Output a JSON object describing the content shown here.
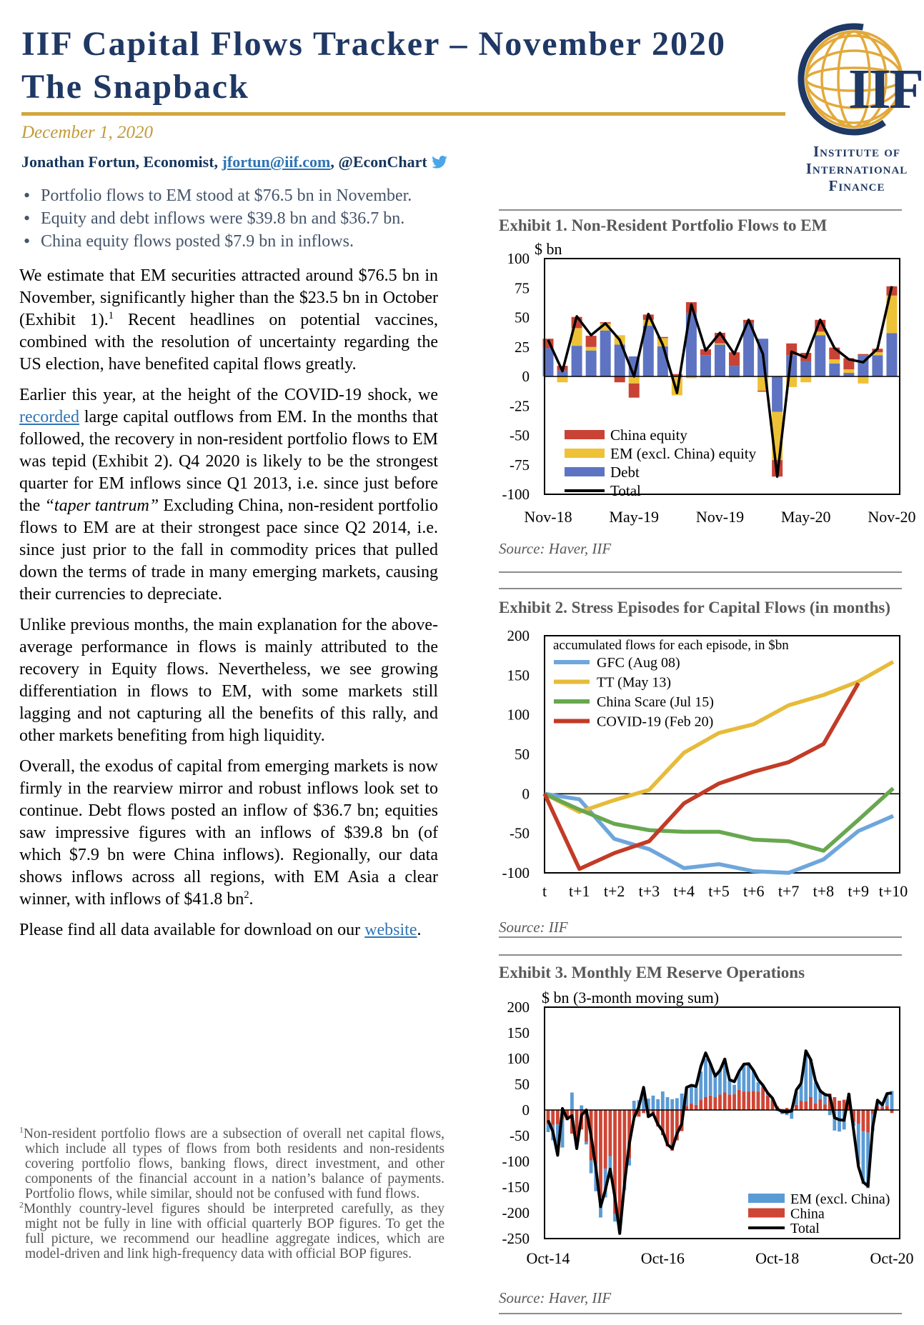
{
  "header": {
    "title_line1": "IIF Capital Flows Tracker – November 2020",
    "title_line2": "The Snapback",
    "date": "December 1, 2020",
    "author_name": "Jonathan Fortun, Economist, ",
    "author_email": "jfortun@iif.com",
    "author_handle": ", @EconChart",
    "accent_gold": "#D2A63E",
    "navy": "#1F3864"
  },
  "logo": {
    "acronym": "IIF",
    "org_lines": [
      "Institute of",
      "International",
      "Finance"
    ]
  },
  "bullets": [
    "Portfolio flows to EM stood at $76.5 bn in November.",
    "Equity and debt inflows were $39.8 bn and $36.7 bn.",
    "China equity flows posted $7.9 bn in inflows."
  ],
  "paragraphs": [
    [
      {
        "t": "We estimate that EM securities attracted around $76.5 bn in November, significantly higher than the $23.5 bn in October (Exhibit 1)."
      },
      {
        "t": "1",
        "s": "sup"
      },
      {
        "t": " Recent headlines on potential vaccines, combined with the resolution of uncertainty regarding the US election, have benefited capital flows greatly."
      }
    ],
    [
      {
        "t": "Earlier this year, at the height of the COVID-19 shock, we "
      },
      {
        "t": "recorded",
        "s": "link"
      },
      {
        "t": " large capital outflows from EM. In the months that followed, the recovery in non-resident portfolio flows to EM was tepid (Exhibit 2). Q4 2020 is likely to be the strongest quarter for EM inflows since Q1 2013, i.e. since just before the "
      },
      {
        "t": "“taper tantrum”",
        "s": "italic"
      },
      {
        "t": " Excluding China, non-resident portfolio flows to EM are at their strongest pace since Q2 2014, i.e. since just prior to the fall in commodity prices that pulled down the terms of trade in many emerging markets, causing their currencies to depreciate."
      }
    ],
    [
      {
        "t": "Unlike previous months, the main explanation for the above-average performance in flows is mainly attributed to the recovery in Equity flows. Nevertheless, we see growing differentiation in flows to EM, with some markets still lagging and not capturing all the benefits of this rally, and other markets benefiting from high liquidity."
      }
    ],
    [
      {
        "t": "Overall, the exodus of capital from emerging markets is now firmly in the rearview mirror and robust inflows look set to continue. Debt flows posted an inflow of $36.7 bn; equities saw impressive figures with an inflows of $39.8 bn (of which $7.9 bn were China inflows). Regionally, our data shows inflows across all regions, with EM Asia a clear winner, with inflows of $41.8 bn"
      },
      {
        "t": "2",
        "s": "sup"
      },
      {
        "t": "."
      }
    ],
    [
      {
        "t": "Please find all data available for download on our "
      },
      {
        "t": "website",
        "s": "link"
      },
      {
        "t": "."
      }
    ]
  ],
  "footnotes": [
    {
      "marker": "1",
      "text": "Non-resident portfolio flows are a subsection of overall net capital flows, which include all types of flows from both residents and non-residents covering portfolio flows, banking flows, direct investment, and other components of the financial account in a nation’s balance of payments. Portfolio flows, while similar, should not be confused with fund flows."
    },
    {
      "marker": "2",
      "text": "Monthly country-level figures should be interpreted carefully, as they might not be fully in line with official quarterly BOP figures. To get the full picture, we recommend our headline aggregate indices, which are model-driven and link high-frequency data with official BOP figures."
    }
  ],
  "chart_data": [
    {
      "type": "bar",
      "title": "Exhibit 1. Non-Resident Portfolio Flows to EM",
      "unit_label": "$ bn",
      "source": "Source: Haver, IIF",
      "ylim": [
        -100,
        100
      ],
      "ytick": 25,
      "grid": false,
      "legend_position": "inside-bottom-left",
      "categories": [
        "Nov-18",
        "Dec-18",
        "Jan-19",
        "Feb-19",
        "Mar-19",
        "Apr-19",
        "May-19",
        "Jun-19",
        "Jul-19",
        "Aug-19",
        "Sep-19",
        "Oct-19",
        "Nov-19",
        "Dec-19",
        "Jan-20",
        "Feb-20",
        "Mar-20",
        "Apr-20",
        "May-20",
        "Jun-20",
        "Jul-20",
        "Aug-20",
        "Sep-20",
        "Oct-20",
        "Nov-20"
      ],
      "x_tick_labels": [
        "Nov-18",
        "May-19",
        "Nov-19",
        "May-20",
        "Nov-20"
      ],
      "x_tick_positions": [
        0,
        6,
        12,
        18,
        24
      ],
      "series": [
        {
          "name": "Debt",
          "color": "#5E74C2",
          "values": [
            24,
            5,
            26,
            22,
            39,
            27,
            17,
            43,
            25.5,
            0,
            54,
            18,
            27,
            9,
            45,
            32,
            -30,
            18,
            13,
            35,
            11,
            3,
            18,
            18,
            36.7
          ]
        },
        {
          "name": "EM (excl. China) equity",
          "color": "#EEC236",
          "values": [
            0,
            -5,
            15,
            3,
            6,
            8,
            -6,
            5,
            7,
            -16,
            -1.5,
            -1,
            1,
            -1,
            0,
            -12,
            -41,
            -9,
            -5,
            3,
            3.5,
            3,
            -6,
            2.5,
            31.9
          ]
        },
        {
          "name": "China equity",
          "color": "#C84335",
          "values": [
            8,
            4,
            9.5,
            9.5,
            1,
            -5,
            -12,
            4.5,
            1,
            2,
            9,
            5,
            9,
            11.5,
            3,
            -1,
            -14,
            10,
            7,
            10,
            10,
            9.5,
            1,
            3,
            7.9
          ]
        }
      ],
      "line": {
        "name": "Total",
        "color": "#000000",
        "values": [
          31,
          4.5,
          51,
          35,
          45,
          31,
          0,
          53,
          27,
          -14,
          61,
          22,
          37,
          19,
          48,
          19,
          -85,
          21,
          16,
          48,
          24,
          14.5,
          12,
          23.5,
          76.5
        ]
      },
      "legend_order": [
        "China equity",
        "EM (excl. China) equity",
        "Debt",
        "Total"
      ]
    },
    {
      "type": "line",
      "title": "Exhibit 2. Stress Episodes for Capital Flows (in months)",
      "note": "accumulated flows for each episode, in $bn",
      "source": "Source: IIF",
      "ylim": [
        -100,
        200
      ],
      "ytick": 50,
      "grid": false,
      "legend_position": "inside-top-left",
      "x_labels": [
        "t",
        "t+1",
        "t+2",
        "t+3",
        "t+4",
        "t+5",
        "t+6",
        "t+7",
        "t+8",
        "t+9",
        "t+10"
      ],
      "series": [
        {
          "name": "GFC (Aug 08)",
          "color": "#6EA6DC",
          "values": [
            0,
            -7,
            -57,
            -70,
            -94,
            -89,
            -98,
            -100,
            -83,
            -47,
            -28
          ]
        },
        {
          "name": "TT (May 13)",
          "color": "#E7BB3A",
          "values": [
            0,
            -23,
            -8,
            5,
            52,
            77,
            88,
            112,
            125,
            142,
            167
          ]
        },
        {
          "name": "China Scare (Jul 15)",
          "color": "#68A74F",
          "values": [
            0,
            -20,
            -38,
            -46,
            -48,
            -48,
            -58,
            -60,
            -72,
            -33,
            7
          ]
        },
        {
          "name": "COVID-19 (Feb 20)",
          "color": "#C23B26",
          "values": [
            0,
            -95,
            -75,
            -60,
            -12,
            13,
            28,
            40,
            63,
            140,
            null
          ]
        }
      ]
    },
    {
      "type": "bar",
      "title": "Exhibit 3. Monthly EM Reserve Operations",
      "unit_label": "$ bn (3-month moving sum)",
      "source": "Source: Haver, IIF",
      "ylim": [
        -250,
        200
      ],
      "ytick": 50,
      "grid": false,
      "legend_position": "inside-bottom-right",
      "categories": [
        "Oct-14",
        "Nov-14",
        "Dec-14",
        "Jan-15",
        "Feb-15",
        "Mar-15",
        "Apr-15",
        "May-15",
        "Jun-15",
        "Jul-15",
        "Aug-15",
        "Sep-15",
        "Oct-15",
        "Nov-15",
        "Dec-15",
        "Jan-16",
        "Feb-16",
        "Mar-16",
        "Apr-16",
        "May-16",
        "Jun-16",
        "Jul-16",
        "Aug-16",
        "Sep-16",
        "Oct-16",
        "Nov-16",
        "Dec-16",
        "Jan-17",
        "Feb-17",
        "Mar-17",
        "Apr-17",
        "May-17",
        "Jun-17",
        "Jul-17",
        "Aug-17",
        "Sep-17",
        "Oct-17",
        "Nov-17",
        "Dec-17",
        "Jan-18",
        "Feb-18",
        "Mar-18",
        "Apr-18",
        "May-18",
        "Jun-18",
        "Jul-18",
        "Aug-18",
        "Sep-18",
        "Oct-18",
        "Nov-18",
        "Dec-18",
        "Jan-19",
        "Feb-19",
        "Mar-19",
        "Apr-19",
        "May-19",
        "Jun-19",
        "Jul-19",
        "Aug-19",
        "Sep-19",
        "Oct-19",
        "Nov-19",
        "Dec-19",
        "Jan-20",
        "Feb-20",
        "Mar-20",
        "Apr-20",
        "May-20",
        "Jun-20",
        "Jul-20",
        "Aug-20",
        "Sep-20",
        "Oct-20"
      ],
      "x_tick_labels": [
        "Oct-14",
        "Oct-16",
        "Oct-18",
        "Oct-20"
      ],
      "x_tick_positions": [
        0,
        24,
        48,
        72
      ],
      "series": [
        {
          "name": "China",
          "color": "#CF4535",
          "values": [
            -28,
            -29,
            -28,
            -18,
            -18,
            -46,
            -60,
            -38,
            -62,
            -98,
            -105,
            -170,
            -114,
            -90,
            -202,
            -220,
            -142,
            -94,
            -13,
            -13,
            -6,
            -14,
            -10,
            -32,
            -49,
            -71,
            -79,
            -59,
            -41,
            8,
            13,
            10,
            20,
            25,
            28,
            25,
            30,
            34,
            30,
            31,
            39,
            36,
            36,
            37,
            36,
            44,
            28,
            19,
            7,
            2,
            4,
            2,
            10,
            18,
            17,
            25,
            13,
            21,
            11,
            32,
            25,
            18,
            20,
            27,
            -23,
            -27,
            -41,
            -44,
            -8,
            7,
            6,
            8,
            -6
          ]
        },
        {
          "name": "EM (excl. China)",
          "color": "#5B9BD5",
          "values": [
            -15,
            -30,
            -41,
            -55,
            -2,
            34,
            -12,
            9,
            -5,
            -25,
            -53,
            -39,
            -56,
            -43,
            -15,
            -16,
            -14,
            -14,
            18,
            19,
            36,
            22,
            28,
            21,
            36,
            25,
            21,
            23,
            32,
            36,
            36,
            34,
            55,
            75,
            62,
            45,
            48,
            66,
            27,
            18,
            35,
            54,
            56,
            41,
            18,
            5,
            5,
            3,
            -2,
            -8,
            -10,
            -17,
            26,
            31,
            98,
            74,
            41,
            19,
            22,
            -10,
            -40,
            -42,
            -38,
            5,
            -8,
            -79,
            -103,
            -108,
            -33,
            11,
            8,
            23,
            37
          ]
        }
      ],
      "line": {
        "name": "Total",
        "color": "#000000",
        "values": [
          -20,
          -42,
          -88,
          3,
          -17,
          -11,
          -75,
          -10,
          0,
          -50,
          -112,
          -188,
          -155,
          -115,
          -170,
          -240,
          -143,
          -66,
          -15,
          6,
          44,
          -13,
          -7,
          -28,
          -41,
          -67,
          -75,
          -46,
          -27,
          44,
          48,
          46,
          85,
          111,
          90,
          66,
          77,
          99,
          59,
          55,
          75,
          89,
          90,
          77,
          59,
          48,
          33,
          23,
          2,
          -3,
          -4,
          -2,
          39,
          52,
          115,
          98,
          57,
          37,
          30,
          28,
          -15,
          -19,
          -20,
          31,
          -40,
          -110,
          -140,
          -148,
          -33,
          19,
          10,
          32,
          33
        ]
      },
      "legend_order": [
        "EM (excl. China)",
        "China",
        "Total"
      ]
    }
  ]
}
